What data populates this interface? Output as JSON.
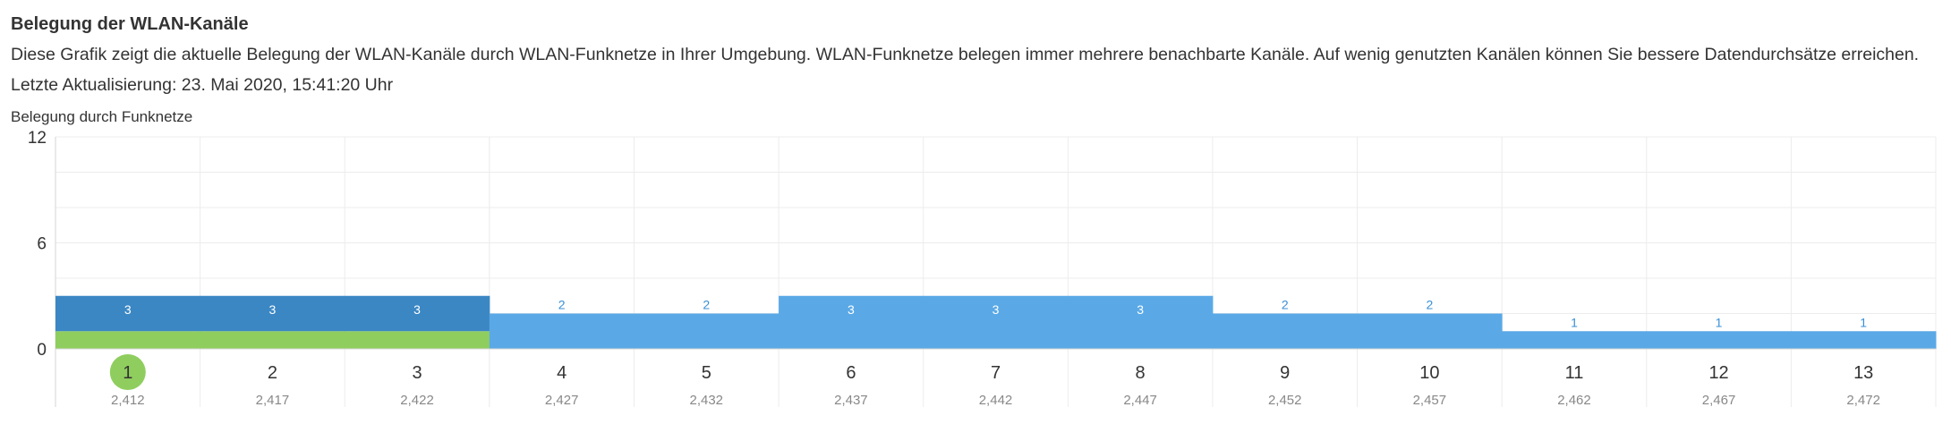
{
  "header": {
    "title": "Belegung der WLAN-Kanäle",
    "description": "Diese Grafik zeigt die aktuelle Belegung der WLAN-Kanäle durch WLAN-Funknetze in Ihrer Umgebung. WLAN-Funknetze belegen immer mehrere benachbarte Kanäle. Auf wenig genutzten Kanälen können Sie bessere Datendurchsätze erreichen.",
    "last_update": "Letzte Aktualisierung: 23. Mai 2020, 15:41:20 Uhr"
  },
  "chart_label": "Belegung durch Funknetze",
  "colors": {
    "own": "#8fce5e",
    "other": "#5aa9e6",
    "overlap": "#3b87c4",
    "label_light": "#ffffff",
    "label_blue": "#3a8fd6",
    "grid": "#ececec",
    "axis": "#d4d4d4"
  },
  "chart_data": {
    "type": "bar",
    "title": "Belegung durch Funknetze",
    "categories": [
      "1",
      "2",
      "3",
      "4",
      "5",
      "6",
      "7",
      "8",
      "9",
      "10",
      "11",
      "12",
      "13"
    ],
    "frequencies": [
      "2,412",
      "2,417",
      "2,422",
      "2,427",
      "2,432",
      "2,437",
      "2,442",
      "2,447",
      "2,452",
      "2,457",
      "2,462",
      "2,467",
      "2,472"
    ],
    "series": [
      {
        "name": "",
        "role": "own",
        "values": [
          1,
          1,
          1,
          0,
          0,
          0,
          0,
          0,
          0,
          0,
          0,
          0,
          0
        ]
      },
      {
        "name": "",
        "role": "other",
        "values": [
          2,
          2,
          2,
          2,
          2,
          3,
          3,
          3,
          2,
          2,
          1,
          1,
          1
        ]
      }
    ],
    "totals": [
      3,
      3,
      3,
      2,
      2,
      3,
      3,
      3,
      2,
      2,
      1,
      1,
      1
    ],
    "ylim": [
      0,
      12
    ],
    "yticks": [
      0,
      6,
      12
    ],
    "selected_channel": "1",
    "grid": true
  }
}
